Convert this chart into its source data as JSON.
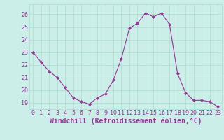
{
  "x": [
    0,
    1,
    2,
    3,
    4,
    5,
    6,
    7,
    8,
    9,
    10,
    11,
    12,
    13,
    14,
    15,
    16,
    17,
    18,
    19,
    20,
    21,
    22,
    23
  ],
  "y": [
    23.0,
    22.2,
    21.5,
    21.0,
    20.2,
    19.4,
    19.1,
    18.9,
    19.4,
    19.7,
    20.8,
    22.5,
    24.9,
    25.3,
    26.1,
    25.8,
    26.1,
    25.2,
    21.3,
    19.8,
    19.2,
    19.2,
    19.1,
    18.7
  ],
  "line_color": "#993399",
  "marker": "D",
  "marker_size": 2,
  "bg_color": "#cceee8",
  "grid_color": "#aaddcc",
  "xlabel": "Windchill (Refroidissement éolien,°C)",
  "xlabel_color": "#993399",
  "xlabel_fontsize": 7,
  "tick_color": "#993399",
  "tick_fontsize": 6,
  "ytick_vals": [
    19,
    20,
    21,
    22,
    23,
    24,
    25,
    26
  ],
  "ytick_labels": [
    "19",
    "20",
    "21",
    "22",
    "23",
    "24",
    "25",
    "26"
  ],
  "ylim": [
    18.5,
    26.8
  ],
  "xlim": [
    -0.5,
    23.5
  ]
}
